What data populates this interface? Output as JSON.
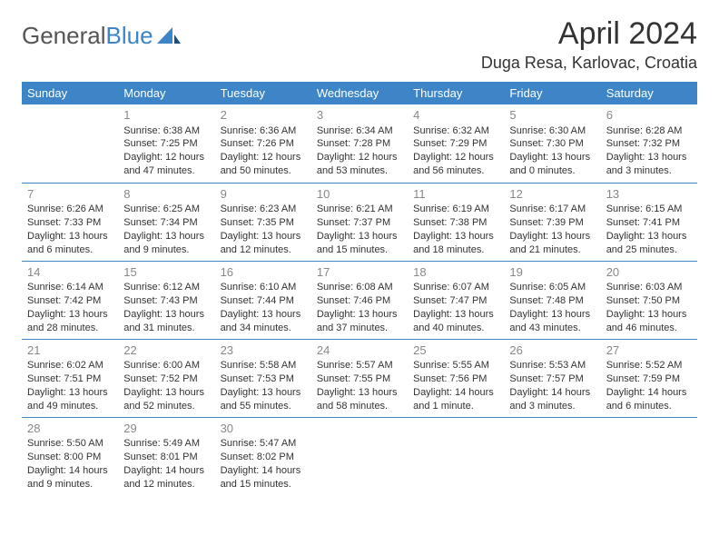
{
  "brand": {
    "part1": "General",
    "part2": "Blue"
  },
  "title": "April 2024",
  "location": "Duga Resa, Karlovac, Croatia",
  "colors": {
    "header_bg": "#3d85c6",
    "header_fg": "#ffffff",
    "rule": "#3d85c6",
    "text": "#333333",
    "daynum": "#888888",
    "brand_gray": "#555555",
    "brand_blue": "#3d85c6",
    "background": "#ffffff"
  },
  "fonts": {
    "title_size_pt": 26,
    "location_size_pt": 14,
    "header_cell_size_pt": 10,
    "body_size_pt": 8.5,
    "daynum_size_pt": 10
  },
  "day_headers": [
    "Sunday",
    "Monday",
    "Tuesday",
    "Wednesday",
    "Thursday",
    "Friday",
    "Saturday"
  ],
  "weeks": [
    [
      null,
      {
        "n": "1",
        "sr": "Sunrise: 6:38 AM",
        "ss": "Sunset: 7:25 PM",
        "dl": "Daylight: 12 hours and 47 minutes."
      },
      {
        "n": "2",
        "sr": "Sunrise: 6:36 AM",
        "ss": "Sunset: 7:26 PM",
        "dl": "Daylight: 12 hours and 50 minutes."
      },
      {
        "n": "3",
        "sr": "Sunrise: 6:34 AM",
        "ss": "Sunset: 7:28 PM",
        "dl": "Daylight: 12 hours and 53 minutes."
      },
      {
        "n": "4",
        "sr": "Sunrise: 6:32 AM",
        "ss": "Sunset: 7:29 PM",
        "dl": "Daylight: 12 hours and 56 minutes."
      },
      {
        "n": "5",
        "sr": "Sunrise: 6:30 AM",
        "ss": "Sunset: 7:30 PM",
        "dl": "Daylight: 13 hours and 0 minutes."
      },
      {
        "n": "6",
        "sr": "Sunrise: 6:28 AM",
        "ss": "Sunset: 7:32 PM",
        "dl": "Daylight: 13 hours and 3 minutes."
      }
    ],
    [
      {
        "n": "7",
        "sr": "Sunrise: 6:26 AM",
        "ss": "Sunset: 7:33 PM",
        "dl": "Daylight: 13 hours and 6 minutes."
      },
      {
        "n": "8",
        "sr": "Sunrise: 6:25 AM",
        "ss": "Sunset: 7:34 PM",
        "dl": "Daylight: 13 hours and 9 minutes."
      },
      {
        "n": "9",
        "sr": "Sunrise: 6:23 AM",
        "ss": "Sunset: 7:35 PM",
        "dl": "Daylight: 13 hours and 12 minutes."
      },
      {
        "n": "10",
        "sr": "Sunrise: 6:21 AM",
        "ss": "Sunset: 7:37 PM",
        "dl": "Daylight: 13 hours and 15 minutes."
      },
      {
        "n": "11",
        "sr": "Sunrise: 6:19 AM",
        "ss": "Sunset: 7:38 PM",
        "dl": "Daylight: 13 hours and 18 minutes."
      },
      {
        "n": "12",
        "sr": "Sunrise: 6:17 AM",
        "ss": "Sunset: 7:39 PM",
        "dl": "Daylight: 13 hours and 21 minutes."
      },
      {
        "n": "13",
        "sr": "Sunrise: 6:15 AM",
        "ss": "Sunset: 7:41 PM",
        "dl": "Daylight: 13 hours and 25 minutes."
      }
    ],
    [
      {
        "n": "14",
        "sr": "Sunrise: 6:14 AM",
        "ss": "Sunset: 7:42 PM",
        "dl": "Daylight: 13 hours and 28 minutes."
      },
      {
        "n": "15",
        "sr": "Sunrise: 6:12 AM",
        "ss": "Sunset: 7:43 PM",
        "dl": "Daylight: 13 hours and 31 minutes."
      },
      {
        "n": "16",
        "sr": "Sunrise: 6:10 AM",
        "ss": "Sunset: 7:44 PM",
        "dl": "Daylight: 13 hours and 34 minutes."
      },
      {
        "n": "17",
        "sr": "Sunrise: 6:08 AM",
        "ss": "Sunset: 7:46 PM",
        "dl": "Daylight: 13 hours and 37 minutes."
      },
      {
        "n": "18",
        "sr": "Sunrise: 6:07 AM",
        "ss": "Sunset: 7:47 PM",
        "dl": "Daylight: 13 hours and 40 minutes."
      },
      {
        "n": "19",
        "sr": "Sunrise: 6:05 AM",
        "ss": "Sunset: 7:48 PM",
        "dl": "Daylight: 13 hours and 43 minutes."
      },
      {
        "n": "20",
        "sr": "Sunrise: 6:03 AM",
        "ss": "Sunset: 7:50 PM",
        "dl": "Daylight: 13 hours and 46 minutes."
      }
    ],
    [
      {
        "n": "21",
        "sr": "Sunrise: 6:02 AM",
        "ss": "Sunset: 7:51 PM",
        "dl": "Daylight: 13 hours and 49 minutes."
      },
      {
        "n": "22",
        "sr": "Sunrise: 6:00 AM",
        "ss": "Sunset: 7:52 PM",
        "dl": "Daylight: 13 hours and 52 minutes."
      },
      {
        "n": "23",
        "sr": "Sunrise: 5:58 AM",
        "ss": "Sunset: 7:53 PM",
        "dl": "Daylight: 13 hours and 55 minutes."
      },
      {
        "n": "24",
        "sr": "Sunrise: 5:57 AM",
        "ss": "Sunset: 7:55 PM",
        "dl": "Daylight: 13 hours and 58 minutes."
      },
      {
        "n": "25",
        "sr": "Sunrise: 5:55 AM",
        "ss": "Sunset: 7:56 PM",
        "dl": "Daylight: 14 hours and 1 minute."
      },
      {
        "n": "26",
        "sr": "Sunrise: 5:53 AM",
        "ss": "Sunset: 7:57 PM",
        "dl": "Daylight: 14 hours and 3 minutes."
      },
      {
        "n": "27",
        "sr": "Sunrise: 5:52 AM",
        "ss": "Sunset: 7:59 PM",
        "dl": "Daylight: 14 hours and 6 minutes."
      }
    ],
    [
      {
        "n": "28",
        "sr": "Sunrise: 5:50 AM",
        "ss": "Sunset: 8:00 PM",
        "dl": "Daylight: 14 hours and 9 minutes."
      },
      {
        "n": "29",
        "sr": "Sunrise: 5:49 AM",
        "ss": "Sunset: 8:01 PM",
        "dl": "Daylight: 14 hours and 12 minutes."
      },
      {
        "n": "30",
        "sr": "Sunrise: 5:47 AM",
        "ss": "Sunset: 8:02 PM",
        "dl": "Daylight: 14 hours and 15 minutes."
      },
      null,
      null,
      null,
      null
    ]
  ]
}
